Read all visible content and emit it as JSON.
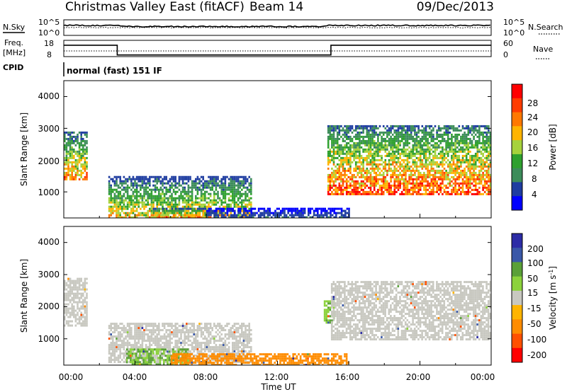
{
  "header": {
    "station": "Christmas Valley East (fitACF)",
    "beam": "Beam 14",
    "date": "09/Dec/2013"
  },
  "strip": {
    "nsky_label": "N.Sky",
    "nsky_ticks": [
      "10^5",
      "10^0"
    ],
    "nsearch_label": "N.Search",
    "nsearch_ticks": [
      "10^5",
      "10^0"
    ],
    "freq_label": "Freq.",
    "freq_unit": "[MHz]",
    "freq_ticks": [
      "18",
      "8"
    ],
    "nave_label": "Nave",
    "nave_ticks": [
      "60",
      "0"
    ],
    "cpid_label": "CPID",
    "cpid_value": "normal (fast) 151 IF"
  },
  "power_panel": {
    "ylabel": "Slant Range [km]",
    "yticks": [
      "4000",
      "3000",
      "2000",
      "1000"
    ],
    "cbar_label": "Power [dB]",
    "cbar_ticks": [
      "28",
      "24",
      "20",
      "16",
      "12",
      "8",
      "4"
    ]
  },
  "velocity_panel": {
    "ylabel": "Slant Range [km]",
    "yticks": [
      "4000",
      "3000",
      "2000",
      "1000"
    ],
    "cbar_label": "Velocity [m s",
    "cbar_label_sup": "-1",
    "cbar_label_end": "]",
    "cbar_ticks": [
      "200",
      "100",
      "50",
      "15",
      "-15",
      "-50",
      "-100",
      "-200"
    ]
  },
  "xaxis": {
    "label": "Time UT",
    "ticks": [
      "00:00",
      "04:00",
      "08:00",
      "12:00",
      "16:00",
      "20:00",
      "00:00"
    ]
  },
  "colors": {
    "power_scale": [
      "#0000ff",
      "#1e3ca0",
      "#3c8c5a",
      "#2ea02e",
      "#a6d23c",
      "#ffb400",
      "#ff7800",
      "#ff3c00",
      "#ff0000"
    ],
    "velocity_scale": [
      "#2c2ca6",
      "#3a58a8",
      "#5aa038",
      "#8cd23c",
      "#c8c8c0",
      "#ffb400",
      "#ff8c00",
      "#ff5000",
      "#ff0000"
    ],
    "gray": "#c8c8c0"
  },
  "chart_data": [
    {
      "type": "heatmap",
      "title": "Power",
      "xlabel": "Time UT",
      "ylabel": "Slant Range [km]",
      "x_range_hours": [
        0,
        24
      ],
      "ylim": [
        180,
        4500
      ],
      "colorbar": {
        "label": "Power [dB]",
        "range": [
          0,
          30
        ],
        "ticks": [
          4,
          8,
          12,
          16,
          20,
          24,
          28
        ]
      },
      "echo_regions": [
        {
          "t_start": 0.0,
          "t_end": 1.3,
          "range_low": 1400,
          "range_high": 2900,
          "peak_power_db": 26
        },
        {
          "t_start": 2.5,
          "t_end": 10.5,
          "range_low": 200,
          "range_high": 1500,
          "peak_power_db": 22
        },
        {
          "t_start": 5.0,
          "t_end": 8.0,
          "range_low": 200,
          "range_high": 500,
          "peak_power_db": 28
        },
        {
          "t_start": 8.0,
          "t_end": 16.0,
          "range_low": 200,
          "range_high": 500,
          "peak_power_db": 8
        },
        {
          "t_start": 14.8,
          "t_end": 24.0,
          "range_low": 900,
          "range_high": 3100,
          "peak_power_db": 30
        }
      ]
    },
    {
      "type": "heatmap",
      "title": "Velocity",
      "xlabel": "Time UT",
      "ylabel": "Slant Range [km]",
      "x_range_hours": [
        0,
        24
      ],
      "ylim": [
        180,
        4500
      ],
      "colorbar": {
        "label": "Velocity [m s-1]",
        "range": [
          -250,
          250
        ],
        "ticks": [
          200,
          100,
          50,
          15,
          -15,
          -50,
          -100,
          -200
        ]
      },
      "echo_regions": [
        {
          "t_start": 0.0,
          "t_end": 1.3,
          "range_low": 1400,
          "range_high": 2900,
          "velocity": 0
        },
        {
          "t_start": 2.5,
          "t_end": 10.5,
          "range_low": 300,
          "range_high": 1500,
          "velocity": 0
        },
        {
          "t_start": 3.5,
          "t_end": 7.0,
          "range_low": 200,
          "range_high": 700,
          "velocity": 50
        },
        {
          "t_start": 6.0,
          "t_end": 16.0,
          "range_low": 200,
          "range_high": 550,
          "velocity": -80
        },
        {
          "t_start": 14.6,
          "t_end": 15.2,
          "range_low": 1500,
          "range_high": 2200,
          "velocity": 50
        },
        {
          "t_start": 15.0,
          "t_end": 24.0,
          "range_low": 1000,
          "range_high": 2800,
          "velocity": 0
        }
      ]
    },
    {
      "type": "line",
      "title": "Freq.",
      "ylabel": "[MHz]",
      "ylim": [
        8,
        18
      ],
      "x": [
        0,
        3.0,
        3.0,
        15.0,
        15.0,
        24
      ],
      "y": [
        15,
        15,
        9,
        9,
        15,
        15
      ]
    }
  ]
}
